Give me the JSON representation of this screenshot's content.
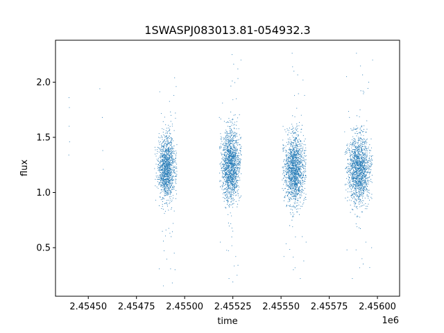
{
  "chart_data": {
    "type": "scatter",
    "title": "1SWASPJ083013.81-054932.3",
    "xlabel": "time",
    "ylabel": "flux",
    "x_offset_label": "1e6",
    "xlim": [
      2454330,
      2456115
    ],
    "ylim": [
      0.06,
      2.38
    ],
    "x_ticks": [
      2454500,
      2454750,
      2455000,
      2455250,
      2455500,
      2455750,
      2456000
    ],
    "x_tick_labels": [
      "2.45450",
      "2.45475",
      "2.45500",
      "2.45525",
      "2.45550",
      "2.45575",
      "2.45600"
    ],
    "y_ticks": [
      0.5,
      1.0,
      1.5,
      2.0
    ],
    "y_tick_labels": [
      "0.5",
      "1.0",
      "1.5",
      "2.0"
    ],
    "grid": false,
    "marker_color": "#1f77b4",
    "series": [
      {
        "points": [
          [
            2454400,
            1.86
          ],
          [
            2454402,
            1.77
          ],
          [
            2454401,
            1.6
          ],
          [
            2454403,
            1.46
          ],
          [
            2454399,
            1.34
          ],
          [
            2454560,
            1.94
          ],
          [
            2454573,
            1.68
          ],
          [
            2454575,
            1.38
          ],
          [
            2454578,
            1.21
          ],
          [
            2454846,
            1.41
          ],
          [
            2454848,
            1.12
          ],
          [
            2454850,
            0.93
          ],
          [
            2454852,
            1.33
          ],
          [
            2454856,
            1.05
          ],
          [
            2454860,
            1.22
          ],
          [
            2454865,
            1.5
          ],
          [
            2454868,
            0.88
          ],
          [
            2454872,
            1.15
          ],
          [
            2454876,
            1.28
          ],
          [
            2454880,
            1.42
          ],
          [
            2454884,
            1.01
          ],
          [
            2454888,
            1.19
          ],
          [
            2454892,
            1.35
          ],
          [
            2454896,
            0.97
          ],
          [
            2454900,
            1.24
          ],
          [
            2454904,
            1.56
          ],
          [
            2454908,
            1.1
          ],
          [
            2454912,
            1.3
          ],
          [
            2454916,
            0.84
          ],
          [
            2454920,
            1.18
          ],
          [
            2454924,
            1.45
          ],
          [
            2454928,
            1.02
          ],
          [
            2454932,
            1.27
          ],
          [
            2454936,
            1.62
          ],
          [
            2454940,
            0.72
          ],
          [
            2454944,
            1.88
          ],
          [
            2454946,
            0.45
          ],
          [
            2454948,
            2.04
          ],
          [
            2454950,
            0.3
          ],
          [
            2454952,
            1.72
          ],
          [
            2454936,
            0.18
          ],
          [
            2454956,
            1.96
          ],
          [
            2454930,
            0.6
          ],
          [
            2455180,
            1.68
          ],
          [
            2455185,
            0.55
          ],
          [
            2455190,
            1.2
          ],
          [
            2455196,
            1.05
          ],
          [
            2455200,
            1.38
          ],
          [
            2455205,
            0.92
          ],
          [
            2455210,
            1.28
          ],
          [
            2455215,
            1.47
          ],
          [
            2455220,
            1.12
          ],
          [
            2455225,
            0.8
          ],
          [
            2455230,
            1.33
          ],
          [
            2455235,
            1.58
          ],
          [
            2455240,
            1.0
          ],
          [
            2455245,
            1.25
          ],
          [
            2455250,
            0.65
          ],
          [
            2455255,
            1.7
          ],
          [
            2455260,
            1.15
          ],
          [
            2455265,
            0.42
          ],
          [
            2455268,
            1.85
          ],
          [
            2455272,
            0.25
          ],
          [
            2455276,
            2.12
          ],
          [
            2455280,
            1.3
          ],
          [
            2455284,
            0.95
          ],
          [
            2455288,
            1.4
          ],
          [
            2455292,
            2.2
          ],
          [
            2455250,
            0.19
          ],
          [
            2455230,
            0.22
          ],
          [
            2455508,
            1.4
          ],
          [
            2455512,
            1.02
          ],
          [
            2455515,
            0.42
          ],
          [
            2455520,
            1.25
          ],
          [
            2455525,
            1.55
          ],
          [
            2455530,
            0.88
          ],
          [
            2455535,
            1.18
          ],
          [
            2455540,
            1.32
          ],
          [
            2455545,
            0.7
          ],
          [
            2455550,
            1.48
          ],
          [
            2455555,
            1.08
          ],
          [
            2455560,
            1.6
          ],
          [
            2455564,
            0.3
          ],
          [
            2455567,
            2.1
          ],
          [
            2455570,
            1.22
          ],
          [
            2455575,
            0.96
          ],
          [
            2455580,
            1.38
          ],
          [
            2455585,
            1.05
          ],
          [
            2455590,
            1.52
          ],
          [
            2455595,
            0.8
          ],
          [
            2455600,
            1.28
          ],
          [
            2455605,
            1.7
          ],
          [
            2455610,
            0.6
          ],
          [
            2455614,
            2.02
          ],
          [
            2455618,
            0.38
          ],
          [
            2455622,
            1.88
          ],
          [
            2455626,
            1.15
          ],
          [
            2455630,
            0.55
          ],
          [
            2455600,
            0.22
          ],
          [
            2455560,
            2.14
          ],
          [
            2455830,
            1.55
          ],
          [
            2455834,
            0.95
          ],
          [
            2455838,
            1.22
          ],
          [
            2455842,
            0.48
          ],
          [
            2455846,
            1.4
          ],
          [
            2455850,
            1.08
          ],
          [
            2455855,
            1.68
          ],
          [
            2455860,
            0.82
          ],
          [
            2455865,
            1.3
          ],
          [
            2455870,
            1.12
          ],
          [
            2455875,
            1.45
          ],
          [
            2455880,
            0.92
          ],
          [
            2455885,
            1.25
          ],
          [
            2455890,
            1.58
          ],
          [
            2455895,
            1.0
          ],
          [
            2455900,
            1.35
          ],
          [
            2455905,
            0.68
          ],
          [
            2455910,
            1.75
          ],
          [
            2455915,
            1.18
          ],
          [
            2455920,
            0.4
          ],
          [
            2455925,
            1.92
          ],
          [
            2455930,
            1.05
          ],
          [
            2455935,
            1.42
          ],
          [
            2455940,
            0.55
          ],
          [
            2455945,
            1.65
          ],
          [
            2455950,
            1.1
          ],
          [
            2455955,
            2.0
          ],
          [
            2455960,
            0.32
          ],
          [
            2455965,
            1.28
          ],
          [
            2455970,
            0.5
          ],
          [
            2455975,
            2.2
          ],
          [
            2455870,
            0.22
          ],
          [
            2455840,
            2.05
          ]
        ]
      }
    ],
    "clusters": [
      {
        "x_center": 2454905,
        "x_spread": 38,
        "x_tail_lo": 2454843,
        "x_tail_hi": 2454960,
        "y_center": 1.22,
        "y_spread": 0.14,
        "n": 1300
      },
      {
        "x_center": 2455240,
        "x_spread": 40,
        "x_tail_lo": 2455180,
        "x_tail_hi": 2455295,
        "y_center": 1.24,
        "y_spread": 0.16,
        "n": 1500
      },
      {
        "x_center": 2455570,
        "x_spread": 45,
        "x_tail_lo": 2455505,
        "x_tail_hi": 2455630,
        "y_center": 1.2,
        "y_spread": 0.15,
        "n": 1500
      },
      {
        "x_center": 2455905,
        "x_spread": 50,
        "x_tail_lo": 2455830,
        "x_tail_hi": 2455975,
        "y_center": 1.2,
        "y_spread": 0.15,
        "n": 1500
      }
    ]
  }
}
